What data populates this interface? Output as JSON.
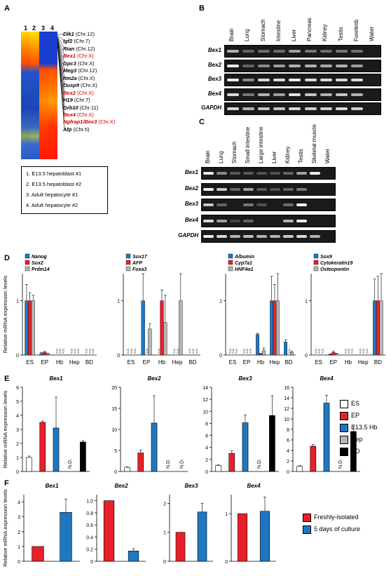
{
  "panel_labels": {
    "A": "A",
    "B": "B",
    "C": "C",
    "D": "D",
    "E": "E",
    "F": "F"
  },
  "panel_a": {
    "column_headers": [
      "1",
      "2",
      "3",
      "4"
    ],
    "genes": [
      {
        "name": "Dlk1",
        "chr": " (Chr.12)",
        "highlight": false
      },
      {
        "name": "Igf2",
        "chr": " (Chr.7)",
        "highlight": false
      },
      {
        "name": "Rian",
        "chr": " (Chr.12)",
        "highlight": false
      },
      {
        "name": "Bex1",
        "chr": " (Chr.X)",
        "highlight": true
      },
      {
        "name": "Gpc3",
        "chr": " (Chr.X)",
        "highlight": false
      },
      {
        "name": "Meg3",
        "chr": " (Chr.12)",
        "highlight": false
      },
      {
        "name": "Itm2a",
        "chr": " (Chr.X)",
        "highlight": false
      },
      {
        "name": "Dusp9",
        "chr": " (Chr.X)",
        "highlight": false
      },
      {
        "name": "Bex2",
        "chr": " (Chr.X)",
        "highlight": true
      },
      {
        "name": "H19",
        "chr": " (Chr.7)",
        "highlight": false
      },
      {
        "name": "Grb10",
        "chr": " (Chr.11)",
        "highlight": false
      },
      {
        "name": "Bex4",
        "chr": " (Chr.X)",
        "highlight": true
      },
      {
        "name": "Ngfrap1/Bex3",
        "chr": " (Chr.X)",
        "highlight": true
      },
      {
        "name": "Afp",
        "chr": " (Chr.5)",
        "highlight": false
      }
    ],
    "key": [
      "1. E13.5 hepatoblast #1",
      "2. E13.5 hepatoblast #2",
      "3. Adult hepatocyte #1",
      "4. Adult hepatocyte #2"
    ]
  },
  "panel_b": {
    "lanes": [
      "Brain",
      "Lung",
      "Stomach",
      "Intestine",
      "Liver",
      "Pancreas",
      "Kidney",
      "Testis",
      "Forelimb",
      "Water"
    ],
    "rows": [
      "Bex1",
      "Bex2",
      "Bex3",
      "Bex4",
      "GAPDH"
    ]
  },
  "panel_c": {
    "lanes": [
      "Brain",
      "Lung",
      "Stomach",
      "Small intestine",
      "Large intestine",
      "Liver",
      "Kidney",
      "Testis",
      "Skeletal muscle",
      "Water"
    ],
    "rows": [
      "Bex1",
      "Bex2",
      "Bex3",
      "Bex4",
      "GAPDH"
    ]
  },
  "chart_data": [
    {
      "panel": "D",
      "type": "bar",
      "ylabel": "Relative mRNA expression levels",
      "categories": [
        "ES",
        "EP",
        "Hb",
        "Hep",
        "BD"
      ],
      "ylim": [
        0,
        1.5
      ],
      "yticks": [
        0,
        1
      ],
      "series": [
        {
          "name": "Nanog",
          "color": "#1f77c0",
          "values": [
            1.0,
            0.03,
            0,
            0,
            0
          ],
          "errors": [
            0.3,
            0.02,
            0,
            0,
            0
          ],
          "nd": [
            false,
            false,
            true,
            true,
            true
          ]
        },
        {
          "name": "Sox2",
          "color": "#e8202a",
          "values": [
            1.0,
            0.05,
            0,
            0,
            0
          ],
          "errors": [
            0.15,
            0.02,
            0,
            0,
            0
          ],
          "nd": [
            false,
            false,
            true,
            true,
            true
          ]
        },
        {
          "name": "Prdm14",
          "color": "#b5b5b5",
          "values": [
            1.0,
            0.02,
            0,
            0,
            0
          ],
          "errors": [
            0.1,
            0.01,
            0,
            0,
            0
          ],
          "nd": [
            false,
            false,
            true,
            true,
            true
          ]
        }
      ]
    },
    {
      "panel": "D",
      "type": "bar",
      "categories": [
        "ES",
        "EP",
        "Hb",
        "Hep",
        "BD"
      ],
      "ylim": [
        0,
        1.5
      ],
      "yticks": [
        0,
        1
      ],
      "series": [
        {
          "name": "Sox17",
          "color": "#1f77c0",
          "values": [
            0,
            1.0,
            0,
            0,
            0
          ],
          "errors": [
            0,
            0.5,
            0,
            0,
            0
          ],
          "nd": [
            true,
            false,
            true,
            true,
            true
          ]
        },
        {
          "name": "AFP",
          "color": "#e8202a",
          "values": [
            0,
            0,
            1.0,
            0,
            0
          ],
          "errors": [
            0,
            0,
            0.2,
            0,
            0
          ],
          "nd": [
            true,
            true,
            false,
            true,
            true
          ]
        },
        {
          "name": "Foxa3",
          "color": "#b5b5b5",
          "values": [
            0,
            0.48,
            0.6,
            1.0,
            0
          ],
          "errors": [
            0,
            0.1,
            0.5,
            0.5,
            0
          ],
          "nd": [
            true,
            false,
            false,
            false,
            true
          ]
        }
      ]
    },
    {
      "panel": "D",
      "type": "bar",
      "categories": [
        "ES",
        "EP",
        "Hb",
        "Hep",
        "BD"
      ],
      "ylim": [
        0,
        1.5
      ],
      "yticks": [
        0,
        1
      ],
      "series": [
        {
          "name": "Albumin",
          "color": "#1f77c0",
          "values": [
            0,
            0,
            0.38,
            1.0,
            0.24
          ],
          "errors": [
            0,
            0,
            0.02,
            0.45,
            0.04
          ],
          "nd": [
            true,
            true,
            false,
            false,
            false
          ]
        },
        {
          "name": "Cyp7a1",
          "color": "#e8202a",
          "values": [
            0,
            0,
            0.02,
            1.0,
            0
          ],
          "errors": [
            0,
            0,
            0.01,
            0.3,
            0
          ],
          "nd": [
            true,
            true,
            false,
            false,
            true
          ]
        },
        {
          "name": "HNF4α1",
          "color": "#b5b5b5",
          "values": [
            0,
            0,
            0.08,
            1.0,
            0.05
          ],
          "errors": [
            0,
            0,
            0.05,
            0.5,
            0.02
          ],
          "nd": [
            true,
            true,
            false,
            false,
            false
          ]
        }
      ]
    },
    {
      "panel": "D",
      "type": "bar",
      "categories": [
        "ES",
        "EP",
        "Hb",
        "Hep",
        "BD"
      ],
      "ylim": [
        0,
        1.5
      ],
      "yticks": [
        0,
        1
      ],
      "series": [
        {
          "name": "Sox9",
          "color": "#1f77c0",
          "values": [
            0,
            0.01,
            0,
            0,
            1.0
          ],
          "errors": [
            0,
            0.01,
            0,
            0,
            0.4
          ],
          "nd": [
            true,
            false,
            true,
            true,
            false
          ]
        },
        {
          "name": "Cytokeratin19",
          "color": "#e8202a",
          "values": [
            0,
            0.05,
            0,
            0,
            1.0
          ],
          "errors": [
            0,
            0.02,
            0,
            0,
            0.45
          ],
          "nd": [
            true,
            false,
            true,
            true,
            false
          ]
        },
        {
          "name": "Osteopontin",
          "color": "#b5b5b5",
          "values": [
            0,
            0.02,
            0,
            0,
            1.0
          ],
          "errors": [
            0,
            0.01,
            0,
            0,
            0.6
          ],
          "nd": [
            true,
            false,
            true,
            true,
            false
          ]
        }
      ]
    },
    {
      "panel": "E",
      "type": "bar",
      "title": "Bex1",
      "ylabel": "Relative mRNA expression levels",
      "categories": [
        "ES",
        "EP",
        "E13.5 Hb",
        "Hep",
        "BD"
      ],
      "colors": [
        "#ffffff",
        "#e8202a",
        "#1f77c0",
        "#b5b5b5",
        "#000000"
      ],
      "ylim": [
        0,
        6
      ],
      "yticks": [
        0,
        1,
        2,
        3,
        4,
        5,
        6
      ],
      "values": [
        1.0,
        3.5,
        3.1,
        0,
        2.1
      ],
      "errors": [
        0.1,
        0.1,
        2.2,
        0,
        0.1
      ],
      "nd": [
        false,
        false,
        false,
        true,
        false
      ]
    },
    {
      "panel": "E",
      "type": "bar",
      "title": "Bex2",
      "categories": [
        "ES",
        "EP",
        "E13.5 Hb",
        "Hep",
        "BD"
      ],
      "colors": [
        "#ffffff",
        "#e8202a",
        "#1f77c0",
        "#b5b5b5",
        "#000000"
      ],
      "ylim": [
        0,
        20
      ],
      "yticks": [
        0,
        5,
        10,
        15,
        20
      ],
      "values": [
        1.0,
        4.4,
        11.5,
        0,
        0
      ],
      "errors": [
        0.1,
        0.7,
        6.5,
        0,
        0
      ],
      "nd": [
        false,
        false,
        false,
        true,
        true
      ]
    },
    {
      "panel": "E",
      "type": "bar",
      "title": "Bex3",
      "categories": [
        "ES",
        "EP",
        "E13.5 Hb",
        "Hep",
        "BD"
      ],
      "colors": [
        "#ffffff",
        "#e8202a",
        "#1f77c0",
        "#b5b5b5",
        "#000000"
      ],
      "ylim": [
        0,
        14
      ],
      "yticks": [
        0,
        2,
        4,
        6,
        8,
        10,
        12,
        14
      ],
      "values": [
        1.0,
        3.0,
        8.1,
        0,
        9.3
      ],
      "errors": [
        0.1,
        0.4,
        1.3,
        0,
        3.3
      ],
      "nd": [
        false,
        false,
        false,
        true,
        false
      ]
    },
    {
      "panel": "E",
      "type": "bar",
      "title": "Bex4",
      "categories": [
        "ES",
        "EP",
        "E13.5 Hb",
        "Hep",
        "BD"
      ],
      "colors": [
        "#ffffff",
        "#e8202a",
        "#1f77c0",
        "#b5b5b5",
        "#000000"
      ],
      "ylim": [
        0,
        16
      ],
      "yticks": [
        0,
        2,
        4,
        6,
        8,
        10,
        12,
        14,
        16
      ],
      "values": [
        1.0,
        4.8,
        13.0,
        0,
        7.6
      ],
      "errors": [
        0.1,
        0.3,
        1.5,
        0,
        1.2
      ],
      "nd": [
        false,
        false,
        false,
        true,
        false
      ]
    },
    {
      "panel": "F",
      "type": "bar",
      "title": "Bex1",
      "ylabel": "Relative mRNA expression levels",
      "categories": [
        "Freshly-isolated",
        "5 days of culture"
      ],
      "colors": [
        "#e8202a",
        "#1f77c0"
      ],
      "ylim": [
        0,
        4.5
      ],
      "yticks": [
        0,
        1,
        2,
        3,
        4
      ],
      "values": [
        1.0,
        3.3
      ],
      "errors": [
        0,
        0.9
      ]
    },
    {
      "panel": "F",
      "type": "bar",
      "title": "Bex2",
      "categories": [
        "Freshly-isolated",
        "5 days of culture"
      ],
      "colors": [
        "#e8202a",
        "#1f77c0"
      ],
      "ylim": [
        0,
        1.1
      ],
      "yticks": [
        0,
        0.2,
        0.4,
        0.6,
        0.8,
        1.0
      ],
      "ytick_labels": [
        "0",
        "0.2",
        "0.4",
        "0.6",
        "0.8",
        "1.0"
      ],
      "values": [
        1.0,
        0.17
      ],
      "errors": [
        0,
        0.04
      ]
    },
    {
      "panel": "F",
      "type": "bar",
      "title": "Bex3",
      "categories": [
        "Freshly-isolated",
        "5 days of culture"
      ],
      "colors": [
        "#e8202a",
        "#1f77c0"
      ],
      "ylim": [
        0,
        2.3
      ],
      "yticks": [
        0,
        1,
        2
      ],
      "values": [
        1.0,
        1.7
      ],
      "errors": [
        0,
        0.3
      ]
    },
    {
      "panel": "F",
      "type": "bar",
      "title": "Bex4",
      "categories": [
        "Freshly-isolated",
        "5 days of culture"
      ],
      "colors": [
        "#e8202a",
        "#1f77c0"
      ],
      "ylim": [
        0,
        1.4
      ],
      "yticks": [
        0,
        1
      ],
      "values": [
        1.0,
        1.05
      ],
      "errors": [
        0,
        0.3
      ]
    }
  ],
  "legend_e": [
    "ES",
    "EP",
    "E13.5 Hb",
    "Hep",
    "BD"
  ],
  "legend_f": [
    "Freshly-isolated",
    "5 days of culture"
  ],
  "nd_label": "N.D.",
  "nd_label_small": "N.D."
}
